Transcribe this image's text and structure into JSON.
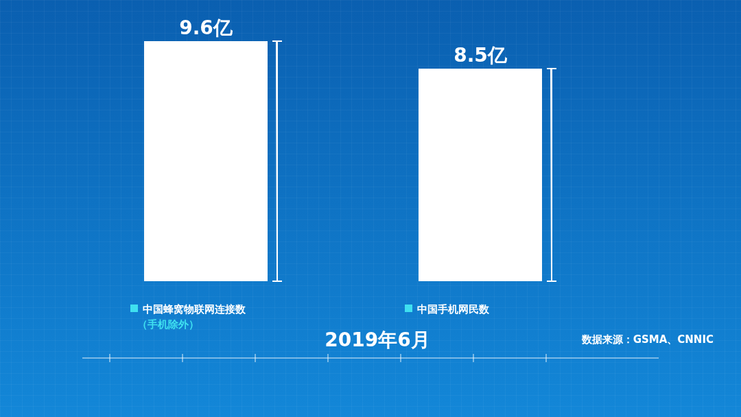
{
  "chart_data": {
    "type": "bar",
    "title": "2019年6月",
    "categories": [
      "中国蜂窝物联网连接数（手机除外）",
      "中国手机网民数"
    ],
    "values": [
      9.6,
      8.5
    ],
    "value_labels": [
      "9.6亿",
      "8.5亿"
    ],
    "color": "#ffffff",
    "annotations": [
      "数据来源：GSMA、CNNIC"
    ]
  }
}
